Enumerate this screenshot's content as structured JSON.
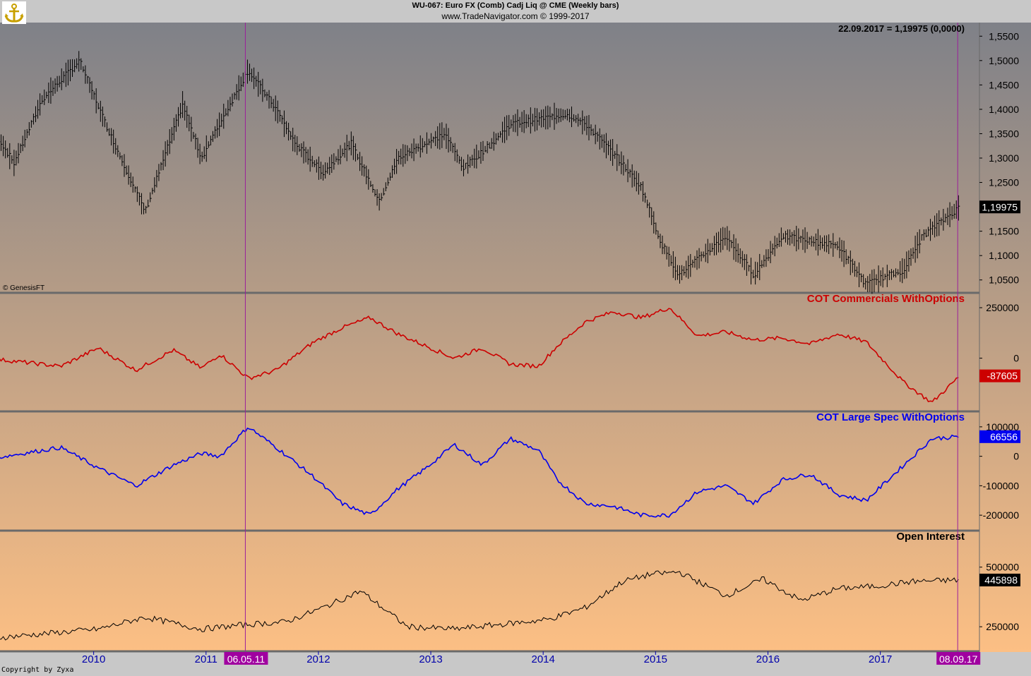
{
  "header": {
    "title": "WU-067:  Euro FX (Comb) Cadj Liq @ CME  (Weekly bars)",
    "source": "www.TradeNavigator.com © 1999-2017",
    "readout": "22.09.2017 = 1,19975 (0,0000)",
    "genesis": "© GenesisFT",
    "copyright": "Copyright by Zyxa",
    "logo": "anchor-logo-icon"
  },
  "colors": {
    "background_top": "#7f8188",
    "background_bottom": "#fcbf84",
    "price": "#000000",
    "commercials": "#cc0000",
    "large_spec": "#0000ee",
    "open_interest": "#000000",
    "marker_line": "#9b1f9b",
    "marker_label_bg": "#a000a0",
    "x_axis_text": "#0000aa"
  },
  "chart_data": [
    {
      "type": "line",
      "series_kind": "weekly-bars",
      "title": "",
      "x": [
        "2009-01",
        "2009-04",
        "2009-07",
        "2009-11",
        "2010-02",
        "2010-06",
        "2010-10",
        "2010-12",
        "2011-05",
        "2011-08",
        "2011-10",
        "2012-01",
        "2012-04",
        "2012-07",
        "2012-09",
        "2013-02",
        "2013-04",
        "2013-07",
        "2013-09",
        "2013-12",
        "2014-03",
        "2014-05",
        "2014-08",
        "2014-11",
        "2015-01",
        "2015-03",
        "2015-08",
        "2015-11",
        "2016-02",
        "2016-05",
        "2016-08",
        "2016-11",
        "2016-12",
        "2017-03",
        "2017-05",
        "2017-09"
      ],
      "series": [
        {
          "values": [
            1.38,
            1.29,
            1.42,
            1.5,
            1.36,
            1.19,
            1.41,
            1.3,
            1.48,
            1.4,
            1.33,
            1.27,
            1.33,
            1.21,
            1.3,
            1.35,
            1.28,
            1.33,
            1.37,
            1.38,
            1.39,
            1.37,
            1.31,
            1.24,
            1.13,
            1.06,
            1.14,
            1.06,
            1.14,
            1.13,
            1.12,
            1.04,
            1.05,
            1.07,
            1.14,
            1.2
          ]
        }
      ],
      "ylim": [
        1.025,
        1.575
      ],
      "yticks": [
        "1,5500",
        "1,5000",
        "1,4500",
        "1,4000",
        "1,3500",
        "1,3000",
        "1,2500",
        "1,2000",
        "1,1500",
        "1,1000",
        "1,0500"
      ],
      "last_value": "1,19975"
    },
    {
      "type": "line",
      "title": "COT Commercials WithOptions",
      "x": [
        "2009-01",
        "2009-05",
        "2009-09",
        "2010-01",
        "2010-05",
        "2010-09",
        "2010-12",
        "2011-02",
        "2011-05",
        "2011-08",
        "2011-12",
        "2012-03",
        "2012-06",
        "2012-09",
        "2012-12",
        "2013-03",
        "2013-06",
        "2013-09",
        "2013-12",
        "2014-02",
        "2014-05",
        "2014-08",
        "2014-11",
        "2015-02",
        "2015-05",
        "2015-08",
        "2015-11",
        "2016-02",
        "2016-05",
        "2016-08",
        "2016-11",
        "2016-12",
        "2017-03",
        "2017-06",
        "2017-09"
      ],
      "series": [
        {
          "name": "COT Commercials WithOptions",
          "values": [
            0,
            -20000,
            -40000,
            50000,
            -60000,
            40000,
            -50000,
            20000,
            -100000,
            -60000,
            80000,
            150000,
            200000,
            120000,
            60000,
            0,
            50000,
            -30000,
            -40000,
            60000,
            180000,
            230000,
            200000,
            250000,
            110000,
            130000,
            90000,
            100000,
            70000,
            120000,
            80000,
            30000,
            -120000,
            -220000,
            -87605
          ]
        }
      ],
      "ylim": [
        -260000,
        320000
      ],
      "yticks": [
        "250000",
        "0"
      ],
      "last_value": "-87605"
    },
    {
      "type": "line",
      "title": "COT Large Spec WithOptions",
      "x": [
        "2009-01",
        "2009-05",
        "2009-09",
        "2010-01",
        "2010-05",
        "2010-09",
        "2010-12",
        "2011-02",
        "2011-05",
        "2011-08",
        "2011-12",
        "2012-03",
        "2012-06",
        "2012-09",
        "2012-12",
        "2013-03",
        "2013-06",
        "2013-09",
        "2013-12",
        "2014-02",
        "2014-05",
        "2014-08",
        "2014-11",
        "2015-02",
        "2015-05",
        "2015-08",
        "2015-11",
        "2016-02",
        "2016-05",
        "2016-08",
        "2016-11",
        "2016-12",
        "2017-03",
        "2017-06",
        "2017-09"
      ],
      "series": [
        {
          "name": "COT Large Spec WithOptions",
          "values": [
            -10000,
            10000,
            30000,
            -40000,
            -100000,
            -30000,
            10000,
            0,
            100000,
            30000,
            -70000,
            -160000,
            -200000,
            -110000,
            -40000,
            40000,
            -30000,
            60000,
            20000,
            -80000,
            -160000,
            -170000,
            -200000,
            -200000,
            -120000,
            -100000,
            -160000,
            -80000,
            -60000,
            -130000,
            -150000,
            -120000,
            -30000,
            60000,
            66556
          ]
        }
      ],
      "ylim": [
        -250000,
        150000
      ],
      "yticks": [
        "100000",
        "0",
        "-100000",
        "-200000"
      ],
      "last_value": "66556"
    },
    {
      "type": "line",
      "title": "Open Interest",
      "x": [
        "2009-01",
        "2009-07",
        "2010-01",
        "2010-06",
        "2010-12",
        "2011-05",
        "2011-09",
        "2012-01",
        "2012-05",
        "2012-10",
        "2013-03",
        "2013-08",
        "2014-01",
        "2014-05",
        "2014-09",
        "2014-12",
        "2015-03",
        "2015-08",
        "2015-12",
        "2016-04",
        "2016-08",
        "2016-12",
        "2017-04",
        "2017-09"
      ],
      "series": [
        {
          "name": "Open Interest",
          "values": [
            200000,
            220000,
            240000,
            290000,
            240000,
            260000,
            270000,
            330000,
            400000,
            250000,
            240000,
            260000,
            280000,
            330000,
            440000,
            470000,
            480000,
            380000,
            450000,
            360000,
            410000,
            420000,
            440000,
            445898
          ]
        }
      ],
      "ylim": [
        150000,
        650000
      ],
      "yticks": [
        "500000",
        "250000"
      ],
      "last_value": "445898"
    }
  ],
  "x_axis": {
    "years": [
      "2010",
      "2011",
      "2012",
      "2013",
      "2014",
      "2015",
      "2016",
      "2017"
    ],
    "marker_left": "06.05.11",
    "marker_right": "08.09.17"
  }
}
